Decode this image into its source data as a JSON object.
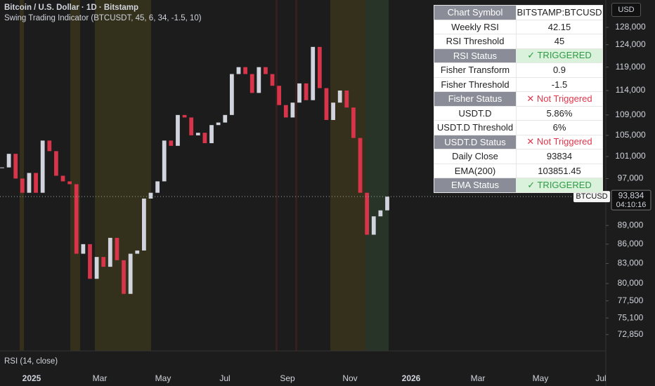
{
  "header": {
    "title": "Bitcoin / U.S. Dollar · 1D · Bitstamp",
    "indicator": "Swing Trading Indicator (BTCUSDT, 45, 6, 34, -1.5, 10)",
    "currency": "USD"
  },
  "chart_data": {
    "type": "candlestick",
    "values": [
      99000,
      101500,
      97000,
      94500,
      98000,
      94500,
      104000,
      102000,
      97500,
      96500,
      96000,
      84500,
      86000,
      80700,
      84000,
      82500,
      87000,
      83500,
      78500,
      84500,
      85000,
      93500,
      94500,
      96500,
      104000,
      103000,
      109000,
      108500,
      105000,
      105500,
      103500,
      107000,
      107500,
      109000,
      117500,
      119000,
      117500,
      113500,
      119000,
      117500,
      115000,
      111000,
      108500,
      111500,
      115500,
      112000,
      123500,
      114500,
      108000,
      111500,
      114000,
      110500,
      104500,
      94500,
      87500,
      90500,
      91500,
      93834
    ],
    "up_color": "#d1d4dc",
    "down_color": "#d8344a",
    "log_scale": true,
    "ylim": [
      70700,
      134600
    ],
    "yticks": [
      {
        "value": 128000,
        "label": "128,000"
      },
      {
        "value": 124000,
        "label": "124,000"
      },
      {
        "value": 119000,
        "label": "119,000"
      },
      {
        "value": 114000,
        "label": "114,000"
      },
      {
        "value": 109000,
        "label": "109,000"
      },
      {
        "value": 105000,
        "label": "105,000"
      },
      {
        "value": 101000,
        "label": "101,000"
      },
      {
        "value": 97000,
        "label": "97,000"
      },
      {
        "value": 89000,
        "label": "89,000"
      },
      {
        "value": 86000,
        "label": "86,000"
      },
      {
        "value": 83000,
        "label": "83,000"
      },
      {
        "value": 80000,
        "label": "80,000"
      },
      {
        "value": 77500,
        "label": "77,500"
      },
      {
        "value": 75100,
        "label": "75,100"
      },
      {
        "value": 72850,
        "label": "72,850"
      }
    ],
    "xticks": [
      "2025",
      "Mar",
      "May",
      "Jul",
      "Sep",
      "Nov",
      "2026",
      "Mar",
      "May",
      "Jul"
    ],
    "last_price": {
      "value": 93834,
      "label": "93,834"
    },
    "countdown": "04:10:16",
    "symbol": "BTCUSD"
  },
  "table": {
    "rows": [
      [
        "Chart Symbol",
        "BITSTAMP:BTCUSD"
      ],
      [
        "Weekly RSI",
        "42.15"
      ],
      [
        "RSI Threshold",
        "45"
      ],
      [
        "RSI Status",
        "✓ TRIGGERED"
      ],
      [
        "Fisher Transform",
        "0.9"
      ],
      [
        "Fisher Threshold",
        "-1.5"
      ],
      [
        "Fisher Status",
        "✕ Not Triggered"
      ],
      [
        "USDT.D",
        "5.86%"
      ],
      [
        "USDT.D Threshold",
        "6%"
      ],
      [
        "USDT.D Status",
        "✕ Not Triggered"
      ],
      [
        "Daily Close",
        "93834"
      ],
      [
        "EMA(200)",
        "103851.45"
      ],
      [
        "EMA Status",
        "✓ TRIGGERED"
      ]
    ]
  },
  "pane": {
    "title": "RSI (14, close)"
  }
}
